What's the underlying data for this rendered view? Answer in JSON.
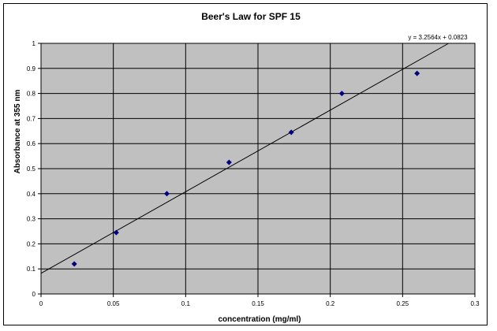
{
  "chart_data": {
    "type": "scatter",
    "title": "Beer's Law for SPF 15",
    "xlabel": "concentration (mg/ml)",
    "ylabel": "Absorbance at 355 nm",
    "xlim": [
      0,
      0.3
    ],
    "ylim": [
      0,
      1
    ],
    "xticks": [
      0,
      0.05,
      0.1,
      0.15,
      0.2,
      0.25,
      0.3
    ],
    "yticks": [
      0,
      0.1,
      0.2,
      0.3,
      0.4,
      0.5,
      0.6,
      0.7,
      0.8,
      0.9,
      1
    ],
    "xtick_labels": [
      "0",
      "0.05",
      "0.1",
      "0.15",
      "0.2",
      "0.25",
      "0.3"
    ],
    "ytick_labels": [
      "0",
      "0.1",
      "0.2",
      "0.3",
      "0.4",
      "0.5",
      "0.6",
      "0.7",
      "0.8",
      "0.9",
      "1"
    ],
    "grid": true,
    "legend": "none",
    "series": [
      {
        "x": [
          0.023,
          0.052,
          0.087,
          0.13,
          0.173,
          0.208,
          0.26
        ],
        "y": [
          0.12,
          0.245,
          0.4,
          0.525,
          0.645,
          0.8,
          0.88
        ],
        "color": "#000080",
        "marker": "diamond"
      }
    ],
    "trendline": {
      "slope": 3.2564,
      "intercept": 0.0823,
      "label": "y = 3.2564x + 0.0823",
      "color": "#000000"
    },
    "colors": {
      "plot_background": "#c0c0c0",
      "gridline": "#000000",
      "marker": "#000080"
    }
  }
}
